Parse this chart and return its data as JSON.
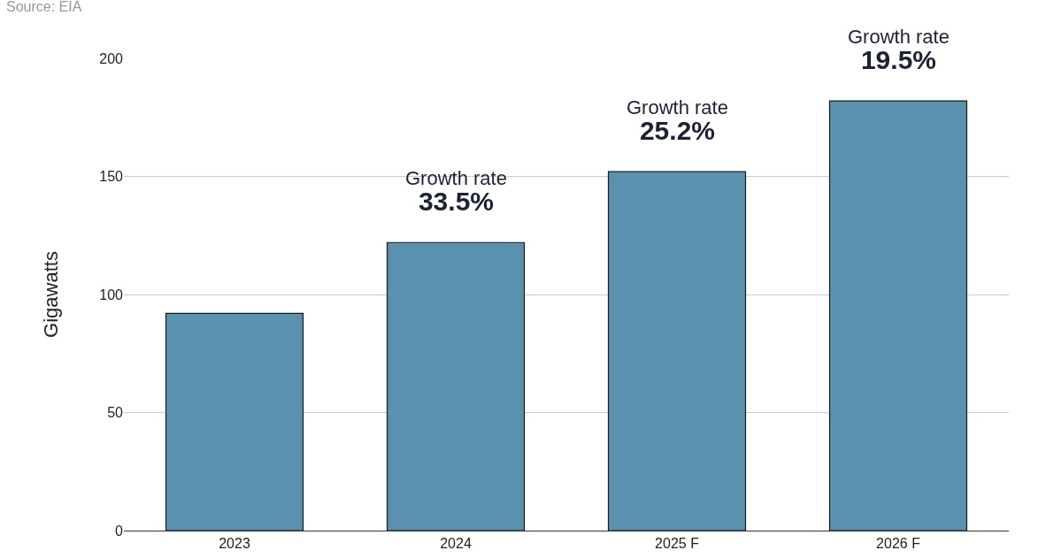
{
  "chart_data": {
    "type": "bar",
    "ylabel": "Gigawatts",
    "categories": [
      "2023",
      "2024",
      "2025 F",
      "2026 F"
    ],
    "values": [
      92,
      122,
      152,
      182
    ],
    "color": "#5a91ae",
    "ylim": [
      0,
      200
    ],
    "yticks": [
      0,
      50,
      100,
      150,
      200
    ],
    "grid": "y",
    "annotations": [
      "Source: EIA",
      {
        "text": "Growth rate\n33.5%",
        "x": "2024",
        "y": 122
      },
      {
        "text": "Growth rate\n25.2%",
        "x": "2025 F",
        "y": 152
      },
      {
        "text": "Growth rate\n19.5%",
        "x": "2026 F",
        "y": 182
      }
    ]
  }
}
